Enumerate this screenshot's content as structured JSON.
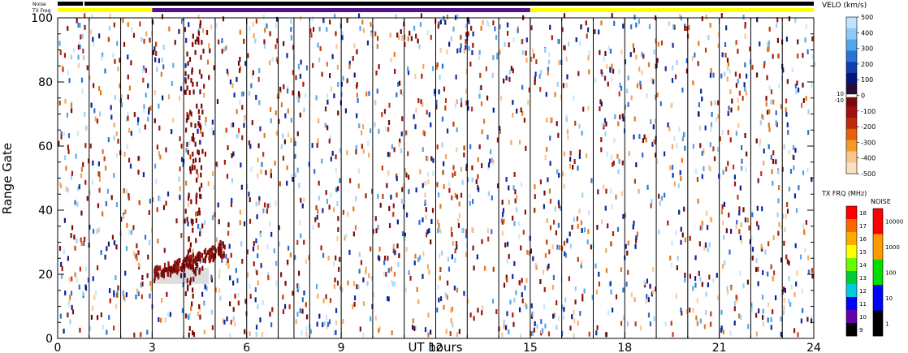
{
  "chart_data": {
    "type": "heatmap",
    "xlabel": "UT hours",
    "ylabel": "Range Gate",
    "xlim": [
      0,
      24
    ],
    "ylim": [
      0,
      100
    ],
    "xticks": [
      "0",
      "3",
      "6",
      "9",
      "12",
      "15",
      "18",
      "21",
      "24"
    ],
    "yticks": [
      "0",
      "20",
      "40",
      "60",
      "80",
      "100"
    ],
    "scan_boundaries_ut": [
      1.0,
      2.0,
      3.0,
      4.0,
      5.0,
      6.0,
      7.0,
      7.5,
      8.0,
      9.0,
      10.0,
      11.0,
      12.0,
      13.0,
      14.0,
      15.0,
      16.0,
      17.0,
      18.0,
      19.0,
      20.0,
      21.0,
      22.0,
      23.0
    ],
    "top_bars": {
      "noise_label": "Noise",
      "txfreq_label": "TX Freq",
      "noise_segments": [
        {
          "start": 0,
          "end": 0.8,
          "color": "#000000"
        },
        {
          "start": 0.85,
          "end": 24,
          "color": "#000000"
        }
      ],
      "txfreq_segments": [
        {
          "start": 0,
          "end": 3.0,
          "color": "#ffff00"
        },
        {
          "start": 3.0,
          "end": 15.0,
          "color": "#55118a"
        },
        {
          "start": 15.0,
          "end": 24,
          "color": "#ffff00"
        }
      ]
    },
    "velocity_scale": {
      "title": "VELO (km/s)",
      "labels": [
        "500",
        "400",
        "300",
        "200",
        "100",
        "0",
        "-100",
        "-200",
        "-300",
        "-400",
        "-500"
      ],
      "zero_labels": [
        "10",
        "-10"
      ],
      "colors_high_to_low": [
        "#bfe4ff",
        "#8fcaf5",
        "#4fa6ea",
        "#2a74d6",
        "#0f3fb0",
        "#06177a",
        "#2a0b3a",
        "#7a0a0a",
        "#a01010",
        "#c02a0a",
        "#e8600a",
        "#f59a2a",
        "#f8c88a",
        "#fbe0c0"
      ]
    },
    "txfreq_scale": {
      "title": "TX FRQ (MHz)",
      "labels": [
        "18",
        "17",
        "16",
        "15",
        "14",
        "13",
        "12",
        "11",
        "10",
        "9"
      ],
      "colors_high_to_low": [
        "#ff0000",
        "#ff6600",
        "#ffaa00",
        "#ffff00",
        "#66ff00",
        "#00cc33",
        "#00ccdd",
        "#0000ff",
        "#6600aa",
        "#000000"
      ]
    },
    "noise_scale": {
      "title": "NOISE",
      "labels": [
        "10000",
        "1000",
        "100",
        "10",
        "1"
      ],
      "colors_high_to_low": [
        "#ff0000",
        "#ff9900",
        "#00dd00",
        "#0000ff",
        "#000000"
      ]
    },
    "echo_colors": [
      "#6b0a0a",
      "#8a1010",
      "#a31a0a",
      "#c03a10",
      "#e07a20",
      "#f4a860",
      "#f8c89a",
      "#0b1e8a",
      "#0d2aa8",
      "#2d6fd0",
      "#5aa6e6",
      "#9ed0f4",
      "#c8e6fa"
    ],
    "ground_scatter": {
      "color": "#c8c8c8",
      "ut_range": [
        3.1,
        4.8
      ],
      "gate_range": [
        17,
        22
      ]
    },
    "seed": 20241
  }
}
